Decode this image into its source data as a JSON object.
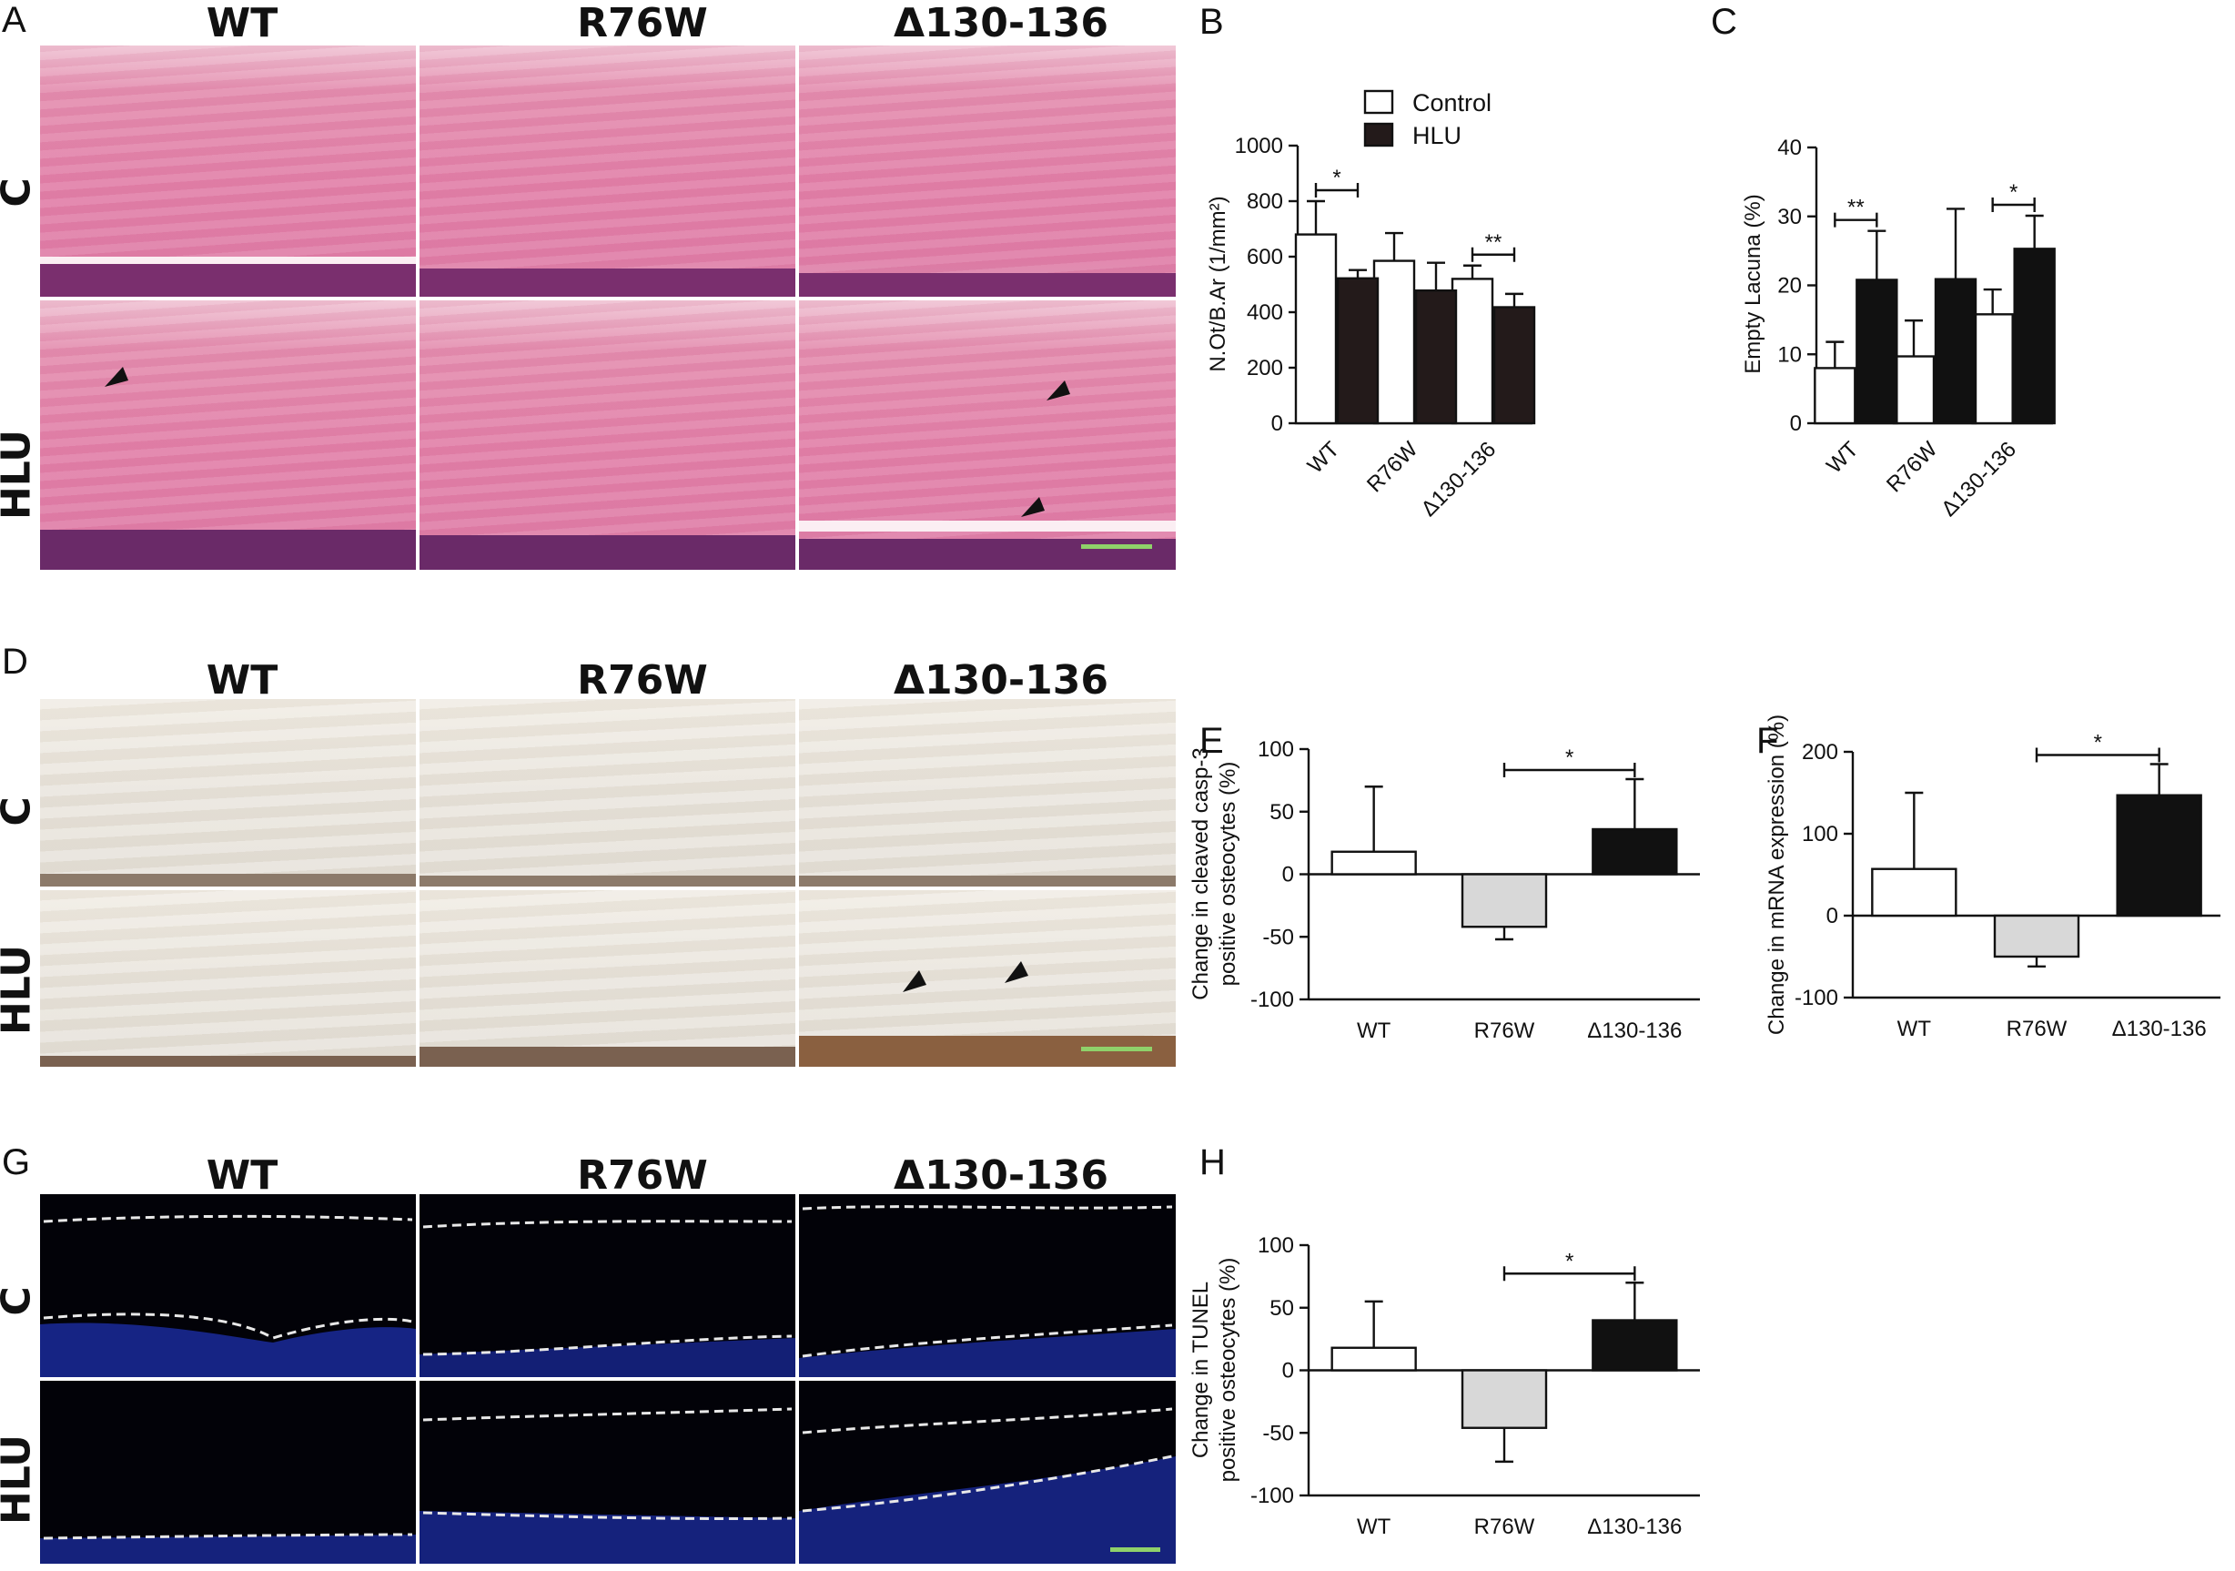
{
  "panels": {
    "A": "A",
    "B": "B",
    "C": "C",
    "D": "D",
    "E": "E",
    "F": "F",
    "G": "G",
    "H": "H"
  },
  "columns": [
    "WT",
    "R76W",
    "Δ130-136"
  ],
  "rows": [
    "C",
    "HLU"
  ],
  "chart_data": [
    {
      "panel": "B",
      "type": "bar",
      "categories": [
        "WT",
        "R76W",
        "Δ130-136"
      ],
      "series": [
        {
          "name": "Control",
          "values": [
            680,
            585,
            520
          ],
          "errors": [
            120,
            100,
            48
          ],
          "color": "#ffffff"
        },
        {
          "name": "HLU",
          "values": [
            522,
            478,
            418
          ],
          "errors": [
            30,
            100,
            48
          ],
          "color": "#231a1a"
        }
      ],
      "ylabel": "N.Ot/B.Ar (1/mm²)",
      "ylim": [
        0,
        1000
      ],
      "yticks": [
        "0",
        "200",
        "400",
        "600",
        "800",
        "1000"
      ],
      "significance": [
        {
          "category": "WT",
          "label": "*"
        },
        {
          "category": "Δ130-136",
          "label": "**"
        }
      ],
      "legend_position": "top"
    },
    {
      "panel": "C",
      "type": "bar",
      "categories": [
        "WT",
        "R76W",
        "Δ130-136"
      ],
      "series": [
        {
          "name": "Control",
          "values": [
            8,
            9.7,
            15.8
          ],
          "errors": [
            3.8,
            5.2,
            3.6
          ],
          "color": "#ffffff"
        },
        {
          "name": "HLU",
          "values": [
            20.8,
            20.9,
            25.3
          ],
          "errors": [
            7.1,
            10.2,
            4.8
          ],
          "color": "#111111"
        }
      ],
      "ylabel": "Empty Lacuna (%)",
      "ylim": [
        0,
        40
      ],
      "yticks": [
        "0",
        "10",
        "20",
        "30",
        "40"
      ],
      "significance": [
        {
          "category": "WT",
          "label": "**"
        },
        {
          "category": "Δ130-136",
          "label": "*"
        }
      ]
    },
    {
      "panel": "E",
      "type": "bar",
      "categories": [
        "WT",
        "R76W",
        "Δ130-136"
      ],
      "values": [
        18,
        -42,
        36
      ],
      "errors": [
        52,
        10,
        40
      ],
      "colors": [
        "#ffffff",
        "#d8d8d8",
        "#111111"
      ],
      "ylabel": "Change in cleaved casp-3 positive osteocytes (%)",
      "ylim": [
        -100,
        100
      ],
      "yticks": [
        "-100",
        "-50",
        "0",
        "50",
        "100"
      ],
      "significance": [
        {
          "from": "R76W",
          "to": "Δ130-136",
          "label": "*"
        }
      ]
    },
    {
      "panel": "F",
      "type": "bar",
      "categories": [
        "WT",
        "R76W",
        "Δ130-136"
      ],
      "values": [
        57,
        -50,
        147
      ],
      "errors": [
        93,
        12,
        38
      ],
      "colors": [
        "#ffffff",
        "#d8d8d8",
        "#111111"
      ],
      "ylabel": "Change in mRNA expression (%)",
      "ylim": [
        -100,
        200
      ],
      "yticks": [
        "-100",
        "0",
        "100",
        "200"
      ],
      "significance": [
        {
          "from": "R76W",
          "to": "Δ130-136",
          "label": "*"
        }
      ]
    },
    {
      "panel": "H",
      "type": "bar",
      "categories": [
        "WT",
        "R76W",
        "Δ130-136"
      ],
      "values": [
        18,
        -46,
        40
      ],
      "errors": [
        37,
        27,
        30
      ],
      "colors": [
        "#ffffff",
        "#d8d8d8",
        "#111111"
      ],
      "ylabel": "Change in TUNEL positive osteocytes (%)",
      "ylim": [
        -100,
        100
      ],
      "yticks": [
        "-100",
        "-50",
        "0",
        "50",
        "100"
      ],
      "significance": [
        {
          "from": "R76W",
          "to": "Δ130-136",
          "label": "*"
        }
      ]
    }
  ]
}
